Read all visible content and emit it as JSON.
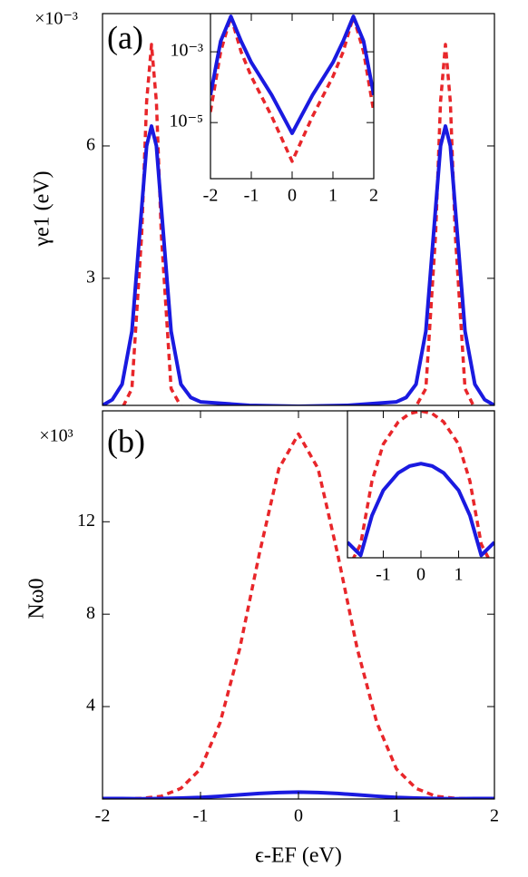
{
  "chart_data": [
    {
      "type": "line",
      "panel_label": "(a)",
      "multiplier": "×10⁻³",
      "ylabel": "γe1 (eV)",
      "x": [
        -2,
        -1.9,
        -1.8,
        -1.7,
        -1.6,
        -1.55,
        -1.5,
        -1.45,
        -1.4,
        -1.3,
        -1.2,
        -1.1,
        -1,
        -0.5,
        0,
        0.5,
        1,
        1.1,
        1.2,
        1.3,
        1.4,
        1.45,
        1.5,
        1.55,
        1.6,
        1.7,
        1.8,
        1.9,
        2
      ],
      "series": [
        {
          "color": "#e8262a",
          "style": "dashed",
          "values": [
            0,
            0.01,
            0.05,
            0.5,
            4.0,
            7.0,
            8.3,
            7.0,
            4.0,
            0.5,
            0.1,
            0.03,
            0.01,
            0,
            0,
            0,
            0.01,
            0.03,
            0.1,
            0.5,
            4.0,
            7.0,
            8.3,
            7.0,
            4.0,
            0.5,
            0.05,
            0.01,
            0
          ]
        },
        {
          "color": "#1a1ae0",
          "style": "solid",
          "values": [
            0.12,
            0.25,
            0.6,
            1.8,
            4.6,
            6.0,
            6.45,
            6.0,
            4.6,
            1.8,
            0.6,
            0.3,
            0.2,
            0.12,
            0.1,
            0.12,
            0.2,
            0.3,
            0.6,
            1.8,
            4.6,
            6.0,
            6.45,
            6.0,
            4.6,
            1.8,
            0.6,
            0.25,
            0.12
          ]
        }
      ],
      "xlim": [
        -2,
        2
      ],
      "ylim": [
        0.12,
        9.0
      ],
      "yticks": [
        3,
        6
      ]
    },
    {
      "type": "line",
      "ylog": true,
      "x": [
        -2,
        -1.75,
        -1.5,
        -1.25,
        -1,
        -0.5,
        0,
        0.5,
        1,
        1.25,
        1.5,
        1.75,
        2
      ],
      "series": [
        {
          "color": "#e8262a",
          "style": "dashed",
          "values": [
            2e-05,
            0.001,
            0.01,
            0.001,
            0.0002,
            1.5e-05,
            8e-07,
            1.5e-05,
            0.0002,
            0.001,
            0.01,
            0.001,
            2e-05
          ]
        },
        {
          "color": "#1a1ae0",
          "style": "solid",
          "values": [
            6e-05,
            0.002,
            0.01,
            0.002,
            0.0005,
            6e-05,
            5e-06,
            6e-05,
            0.0005,
            0.002,
            0.01,
            0.002,
            6e-05
          ]
        }
      ],
      "xlim": [
        -2,
        2
      ],
      "ylim": [
        2.6e-07,
        0.012
      ],
      "xticks": [
        -2,
        -1,
        0,
        1,
        2
      ],
      "yticks": [
        {
          "value": 0.001,
          "label": "10⁻³"
        },
        {
          "value": 1e-05,
          "label": "10⁻⁵"
        }
      ]
    },
    {
      "type": "line",
      "panel_label": "(b)",
      "multiplier": "×10³",
      "ylabel": "Nω0",
      "xlabel": "ϵ-EF (eV)",
      "x": [
        -2,
        -1.8,
        -1.6,
        -1.4,
        -1.2,
        -1,
        -0.8,
        -0.6,
        -0.4,
        -0.2,
        0,
        0.2,
        0.4,
        0.6,
        0.8,
        1,
        1.2,
        1.4,
        1.6,
        1.8,
        2
      ],
      "series": [
        {
          "color": "#e8262a",
          "style": "dashed",
          "values": [
            0,
            0.005,
            0.03,
            0.12,
            0.46,
            1.3,
            3.3,
            6.5,
            10.6,
            14.3,
            15.8,
            14.3,
            10.6,
            6.5,
            3.3,
            1.3,
            0.46,
            0.12,
            0.03,
            0.005,
            0
          ]
        },
        {
          "color": "#1a1ae0",
          "style": "solid",
          "values": [
            0.02,
            0.02,
            0.01,
            0.02,
            0.04,
            0.07,
            0.12,
            0.18,
            0.24,
            0.28,
            0.3,
            0.28,
            0.24,
            0.18,
            0.12,
            0.07,
            0.04,
            0.02,
            0.01,
            0.02,
            0.02
          ]
        }
      ],
      "xlim": [
        -2,
        2
      ],
      "ylim": [
        0,
        16.8
      ],
      "xticks": [
        -2,
        -1,
        0,
        1,
        2
      ],
      "yticks": [
        4,
        8,
        12
      ]
    },
    {
      "type": "line",
      "ylog": true,
      "x": [
        -1.95,
        -1.6,
        -1.3,
        -1,
        -0.6,
        -0.3,
        0,
        0.3,
        0.6,
        1,
        1.3,
        1.6,
        1.95
      ],
      "series": [
        {
          "color": "#e8262a",
          "style": "dashed",
          "values": [
            0.0001,
            0.0007,
            0.08,
            1.3,
            7,
            13,
            15.8,
            13,
            7,
            1.3,
            0.08,
            0.0007,
            0.0001
          ]
        },
        {
          "color": "#1a1ae0",
          "style": "solid",
          "values": [
            0.0008,
            0.0003,
            0.006,
            0.04,
            0.15,
            0.25,
            0.3,
            0.25,
            0.15,
            0.04,
            0.006,
            0.0003,
            0.0008
          ]
        }
      ],
      "xlim": [
        -1.95,
        1.95
      ],
      "ylim": [
        0.00025,
        16
      ],
      "xticks": [
        -1,
        0,
        1
      ]
    }
  ]
}
